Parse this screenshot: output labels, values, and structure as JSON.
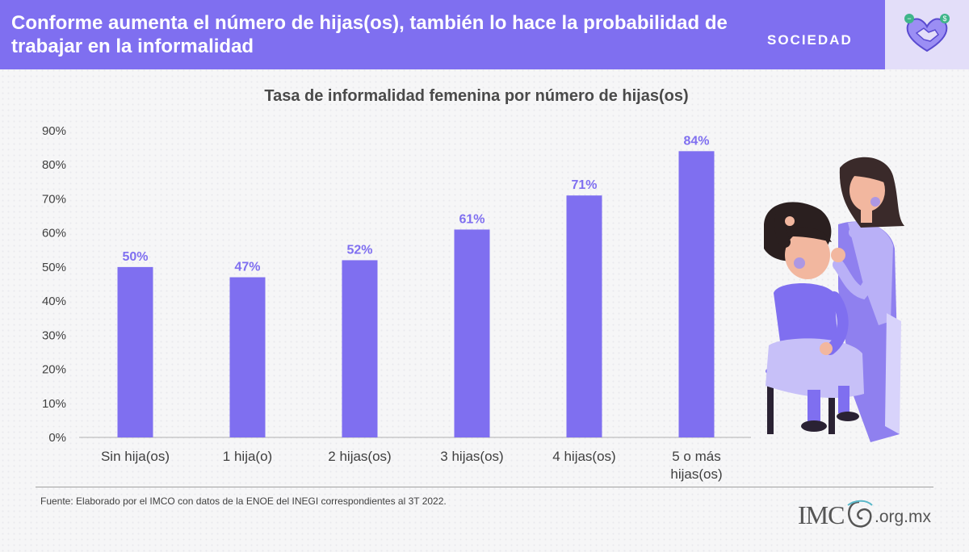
{
  "header": {
    "title": "Conforme aumenta el número de hijas(os), también lo hace la probabilidad de trabajar en la informalidad",
    "section": "SOCIEDAD",
    "section_icon": "handshake-heart-icon"
  },
  "colors": {
    "accent": "#7f6ff0",
    "bar": "#7f6ff0",
    "label": "#7f6ff0",
    "icon_bg": "#e3def9"
  },
  "chart_data": {
    "type": "bar",
    "title": "Tasa de informalidad femenina por número de hijas(os)",
    "categories": [
      "Sin hija(os)",
      "1 hija(o)",
      "2 hijas(os)",
      "3 hijas(os)",
      "4 hijas(os)",
      "5 o más hijas(os)"
    ],
    "values": [
      50,
      47,
      52,
      61,
      71,
      84
    ],
    "value_labels": [
      "50%",
      "47%",
      "52%",
      "61%",
      "71%",
      "84%"
    ],
    "ylim": [
      0,
      90
    ],
    "yticks": [
      0,
      10,
      20,
      30,
      40,
      50,
      60,
      70,
      80,
      90
    ],
    "ytick_labels": [
      "0%",
      "10%",
      "20%",
      "30%",
      "40%",
      "50%",
      "60%",
      "70%",
      "80%",
      "90%"
    ],
    "grid": false,
    "xlabel": "",
    "ylabel": ""
  },
  "footer": {
    "source": "Fuente:  Elaborado por el IMCO con datos de la ENOE del INEGI  correspondientes al 3T 2022.",
    "logo_text": "IMC",
    "logo_domain": ".org.mx"
  },
  "illustration": "mother-combing-daughter-hair-illustration"
}
